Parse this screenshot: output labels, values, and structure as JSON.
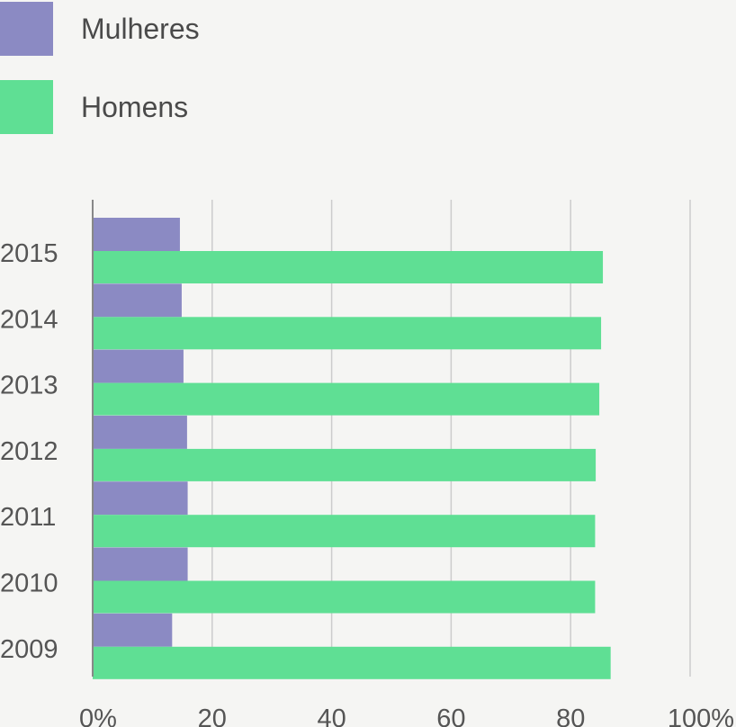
{
  "colors": {
    "background": "#f5f5f3",
    "mulheres": "#8b8ac3",
    "homens": "#5fdf94",
    "grid": "#cccccc",
    "axis": "#888888",
    "text": "#555555"
  },
  "legend": {
    "items": [
      {
        "label": "Mulheres",
        "color": "#8b8ac3"
      },
      {
        "label": "Homens",
        "color": "#5fdf94"
      }
    ]
  },
  "chart_data": {
    "type": "bar",
    "orientation": "horizontal",
    "categories": [
      "2015",
      "2014",
      "2013",
      "2012",
      "2011",
      "2010",
      "2009"
    ],
    "series": [
      {
        "name": "Mulheres",
        "color": "#8b8ac3",
        "values": [
          14.6,
          14.9,
          15.2,
          15.8,
          15.9,
          15.9,
          13.3
        ]
      },
      {
        "name": "Homens",
        "color": "#5fdf94",
        "values": [
          85.4,
          85.1,
          84.8,
          84.2,
          84.1,
          84.1,
          86.7
        ]
      }
    ],
    "x_ticks": [
      "0%",
      "20",
      "40",
      "60",
      "80",
      "100%"
    ],
    "xlim": [
      0,
      100
    ],
    "grid": true,
    "legend_position": "top-left",
    "title": "",
    "xlabel": "",
    "ylabel": ""
  }
}
